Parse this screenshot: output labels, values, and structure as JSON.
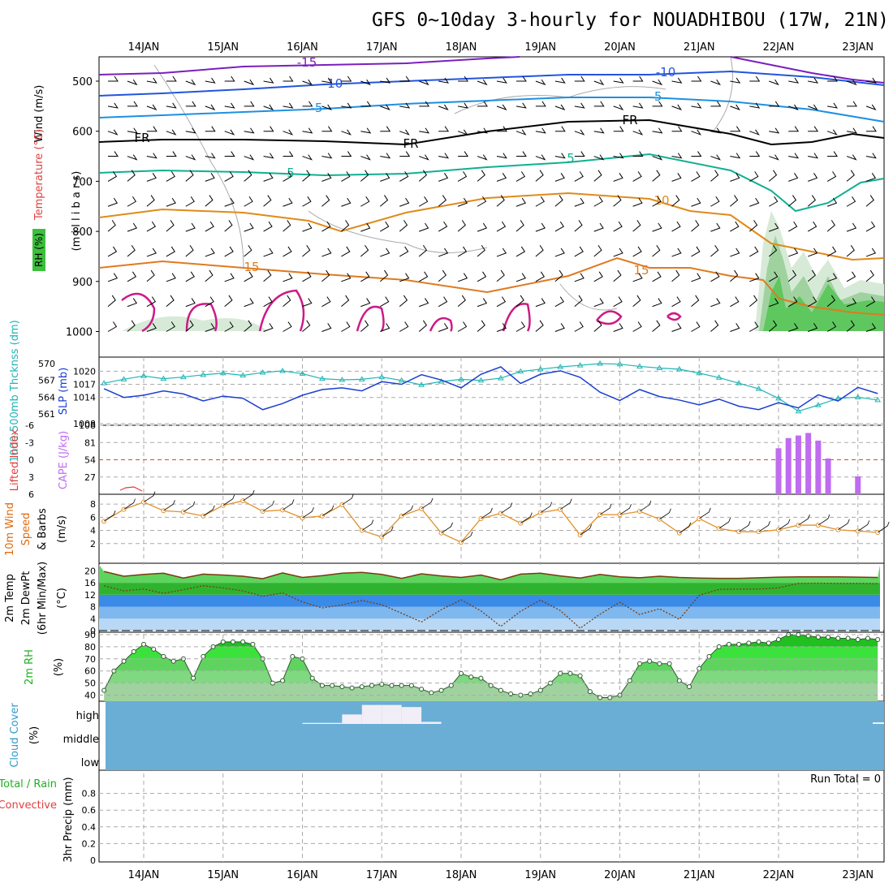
{
  "title": "GFS 0~10day 3-hourly for NOUADHIBOU (17W, 21N)",
  "dates": [
    "14JAN",
    "15JAN",
    "16JAN",
    "17JAN",
    "18JAN",
    "19JAN",
    "20JAN",
    "21JAN",
    "22JAN",
    "23JAN"
  ],
  "colors": {
    "purple": "#7a1fbf",
    "blue": "#2255dd",
    "skyblue": "#1e90e0",
    "green_teal": "#10b090",
    "orange": "#e08a1a",
    "dark_orange": "#e07a20",
    "magenta": "#cc1a88",
    "rh_green": "#5ec75e",
    "cloud_blue": "#6aaed6",
    "cape": "#bf6cf0",
    "li": "#e33b3b",
    "wind_speed": "#e0902a",
    "thickness": "#22b5b5",
    "slp": "#1b3fd0",
    "rh2m": "#4fd44f"
  },
  "panels": {
    "upper": {
      "ylabel_wind": "Wind (m/s)",
      "ylabel_temp": "Temperature (°C)",
      "ylabel_rh": "RH (%)",
      "ylabel_p": "(m i l l i b a r s)",
      "p_ticks": [
        "500",
        "600",
        "700",
        "800",
        "900",
        "1000"
      ],
      "contour_labels": [
        "-15",
        "-10",
        "-10",
        "-5",
        "-5",
        "FR",
        "FR",
        "FR",
        "5",
        "5",
        "10",
        "15",
        "15"
      ]
    },
    "thickness": {
      "ylabel_thick": "1000-500mb Thcknss (dm)",
      "ylabel_slp": "SLP (mb)",
      "thick_ticks": [
        "570",
        "567",
        "564",
        "561"
      ],
      "slp_ticks": [
        "1020",
        "1017",
        "1014",
        "1008"
      ]
    },
    "cape": {
      "ylabel_li": "Lifted Index",
      "ylabel_cape": "CAPE (J/kg)",
      "li_ticks": [
        "-6",
        "-3",
        "0",
        "3",
        "6"
      ],
      "cape_ticks": [
        "108",
        "81",
        "54",
        "27"
      ]
    },
    "wind10": {
      "ylabel_a": "10m Wind",
      "ylabel_b": "Speed",
      "ylabel_c": "& Barbs",
      "ylabel_unit": "(m/s)",
      "ticks": [
        "8",
        "6",
        "4",
        "2"
      ]
    },
    "temp2m": {
      "ylabel_a": "2m Temp",
      "ylabel_b": "2m DewPt",
      "ylabel_c": "(6hr Min/Max)",
      "ylabel_unit": "(°C)",
      "ticks": [
        "20",
        "16",
        "12",
        "8",
        "4",
        "0"
      ]
    },
    "rh2m": {
      "ylabel": "2m RH",
      "ylabel_unit": "(%)",
      "ticks": [
        "90",
        "80",
        "70",
        "60",
        "50",
        "40"
      ]
    },
    "cloud": {
      "ylabel": "Cloud Cover",
      "ylabel_unit": "(%)",
      "levels": [
        "high",
        "middle",
        "low"
      ]
    },
    "precip": {
      "ylabel_a": "Total / Rain",
      "ylabel_b": "Convective",
      "ylabel_c": "3hr Precip (mm)",
      "ticks": [
        "0.8",
        "0.6",
        "0.4",
        "0.2",
        "0"
      ],
      "run_total": "Run Total = 0"
    }
  },
  "chart_data": [
    {
      "type": "line",
      "title": "1000-500mb Thickness and SLP",
      "x": [
        "13.5JAN",
        "13.75JAN",
        "14.0JAN",
        "14.25JAN",
        "14.5JAN",
        "14.75JAN",
        "15.0JAN",
        "15.25JAN",
        "15.5JAN",
        "15.75JAN",
        "16.0JAN",
        "16.25JAN",
        "16.5JAN",
        "16.75JAN",
        "17.0JAN",
        "17.25JAN",
        "17.5JAN",
        "17.75JAN",
        "18.0JAN",
        "18.25JAN",
        "18.5JAN",
        "18.75JAN",
        "19.0JAN",
        "19.25JAN",
        "19.5JAN",
        "19.75JAN",
        "20.0JAN",
        "20.25JAN",
        "20.5JAN",
        "20.75JAN",
        "21.0JAN",
        "21.25JAN",
        "21.5JAN",
        "21.75JAN",
        "22.0JAN",
        "22.25JAN",
        "22.5JAN",
        "22.75JAN",
        "23.0JAN",
        "23.25JAN"
      ],
      "series": [
        {
          "name": "1000-500mb Thcknss (dm)",
          "values": [
            566.5,
            567.2,
            567.8,
            567.3,
            567.6,
            568.0,
            568.3,
            567.9,
            568.4,
            568.7,
            568.2,
            567.3,
            567.1,
            567.2,
            567.6,
            567.0,
            566.2,
            566.8,
            567.2,
            567.0,
            567.4,
            568.6,
            569.0,
            569.4,
            569.7,
            570.0,
            569.9,
            569.5,
            569.2,
            569.0,
            568.3,
            567.5,
            566.5,
            565.5,
            563.8,
            561.5,
            562.6,
            563.8,
            564.0,
            563.5
          ]
        },
        {
          "name": "SLP (mb)",
          "values": [
            1016,
            1014,
            1014.5,
            1015.5,
            1014.8,
            1013.2,
            1014.3,
            1013.8,
            1011.2,
            1012.6,
            1014.5,
            1015.8,
            1016.2,
            1015.5,
            1017.6,
            1017.0,
            1019.2,
            1018.0,
            1016.2,
            1019.3,
            1021.0,
            1017.2,
            1019.3,
            1020.1,
            1018.6,
            1015.2,
            1013.3,
            1015.8,
            1014.2,
            1013.4,
            1012.3,
            1013.6,
            1012.0,
            1011.2,
            1012.8,
            1011.6,
            1014.6,
            1013.2,
            1016.3,
            1014.9
          ]
        }
      ],
      "ylim_thickness": [
        560,
        571
      ],
      "ylim_slp": [
        1008,
        1023
      ]
    },
    {
      "type": "bar",
      "title": "CAPE (J/kg)",
      "categories": [
        "22.0JAN",
        "22.125JAN",
        "22.25JAN",
        "22.375JAN",
        "22.5JAN",
        "22.625JAN",
        "22.75JAN",
        "22.875JAN",
        "23.0JAN"
      ],
      "values": [
        72,
        88,
        92,
        96,
        84,
        56,
        0,
        0,
        28
      ],
      "ylim": [
        0,
        108
      ]
    },
    {
      "type": "line",
      "title": "10m Wind Speed (m/s)",
      "x": [
        "13.5",
        "13.75",
        "14.0",
        "14.25",
        "14.5",
        "14.75",
        "15.0",
        "15.25",
        "15.5",
        "15.75",
        "16.0",
        "16.25",
        "16.5",
        "16.75",
        "17.0",
        "17.25",
        "17.5",
        "17.75",
        "18.0",
        "18.25",
        "18.5",
        "18.75",
        "19.0",
        "19.25",
        "19.5",
        "19.75",
        "20.0",
        "20.25",
        "20.5",
        "20.75",
        "21.0",
        "21.25",
        "21.5",
        "21.75",
        "22.0",
        "22.25",
        "22.5",
        "22.75",
        "23.0",
        "23.25"
      ],
      "series": [
        {
          "name": "Speed",
          "values": [
            5.4,
            7.2,
            8.3,
            7.0,
            6.8,
            6.2,
            7.8,
            8.5,
            6.9,
            7.1,
            5.9,
            6.2,
            7.9,
            4.0,
            3.0,
            6.2,
            7.3,
            3.6,
            2.2,
            5.8,
            6.6,
            5.1,
            6.7,
            7.2,
            3.3,
            6.4,
            6.4,
            6.9,
            5.7,
            3.6,
            5.8,
            4.3,
            3.8,
            3.8,
            4.1,
            4.8,
            4.8,
            4.1,
            3.9,
            3.7
          ]
        }
      ],
      "ylim": [
        0,
        9
      ]
    },
    {
      "type": "line",
      "title": "2m Temp / 2m DewPt (°C)",
      "x": [
        "13.5",
        "13.75",
        "14.0",
        "14.25",
        "14.5",
        "14.75",
        "15.0",
        "15.25",
        "15.5",
        "15.75",
        "16.0",
        "16.25",
        "16.5",
        "16.75",
        "17.0",
        "17.25",
        "17.5",
        "17.75",
        "18.0",
        "18.25",
        "18.5",
        "18.75",
        "19.0",
        "19.25",
        "19.5",
        "19.75",
        "20.0",
        "20.25",
        "20.5",
        "20.75",
        "21.0",
        "21.25",
        "21.5",
        "21.75",
        "22.0",
        "22.25",
        "22.5",
        "22.75",
        "23.0",
        "23.25"
      ],
      "series": [
        {
          "name": "2m Temp",
          "values": [
            19.8,
            18.2,
            18.8,
            19.2,
            17.6,
            18.9,
            18.6,
            18.2,
            17.4,
            19.3,
            17.8,
            18.4,
            19.2,
            19.5,
            18.8,
            17.5,
            19.0,
            18.3,
            17.8,
            18.6,
            17.0,
            18.9,
            19.2,
            18.3,
            17.6,
            18.8,
            18.0,
            17.7,
            18.2,
            17.8,
            17.6,
            17.5,
            17.5,
            17.7,
            17.9,
            18.0,
            18.0,
            18.0,
            17.9,
            17.8
          ]
        },
        {
          "name": "2m DewPt",
          "values": [
            15.0,
            13.3,
            13.9,
            12.5,
            13.7,
            15.0,
            14.3,
            13.3,
            11.5,
            12.6,
            9.6,
            7.6,
            8.6,
            10.1,
            8.7,
            5.8,
            2.9,
            7.0,
            10.3,
            6.6,
            1.4,
            6.5,
            10.2,
            6.7,
            0.8,
            5.5,
            9.5,
            5.4,
            7.3,
            3.8,
            11.8,
            13.8,
            13.9,
            13.9,
            14.3,
            15.8,
            15.9,
            15.8,
            15.8,
            15.7
          ]
        }
      ],
      "ylim": [
        0,
        22
      ]
    },
    {
      "type": "area",
      "title": "2m RH (%)",
      "x": [
        "13.5",
        "13.625",
        "13.75",
        "13.875",
        "14.0",
        "14.125",
        "14.25",
        "14.375",
        "14.5",
        "14.625",
        "14.75",
        "14.875",
        "15.0",
        "15.125",
        "15.25",
        "15.375",
        "15.5",
        "15.625",
        "15.75",
        "15.875",
        "16.0",
        "16.125",
        "16.25",
        "16.375",
        "16.5",
        "16.625",
        "16.75",
        "16.875",
        "17.0",
        "17.125",
        "17.25",
        "17.375",
        "17.5",
        "17.625",
        "17.75",
        "17.875",
        "18.0",
        "18.125",
        "18.25",
        "18.375",
        "18.5",
        "18.625",
        "18.75",
        "18.875",
        "19.0",
        "19.125",
        "19.25",
        "19.375",
        "19.5",
        "19.625",
        "19.75",
        "19.875",
        "20.0",
        "20.125",
        "20.25",
        "20.375",
        "20.5",
        "20.625",
        "20.75",
        "20.875",
        "21.0",
        "21.125",
        "21.25",
        "21.375",
        "21.5",
        "21.625",
        "21.75",
        "21.875",
        "22.0",
        "22.125",
        "22.25",
        "22.375",
        "22.5",
        "22.625",
        "22.75",
        "22.875",
        "23.0",
        "23.125",
        "23.25"
      ],
      "series": [
        {
          "name": "2m RH",
          "values": [
            44,
            60,
            68,
            76,
            82,
            78,
            72,
            68,
            70,
            54,
            72,
            80,
            84,
            84,
            84,
            82,
            70,
            50,
            52,
            72,
            70,
            54,
            48,
            48,
            47,
            46,
            47,
            48,
            49,
            48,
            48,
            48,
            45,
            42,
            44,
            48,
            58,
            55,
            54,
            48,
            44,
            41,
            40,
            41,
            44,
            50,
            58,
            58,
            56,
            43,
            38,
            38,
            40,
            52,
            66,
            68,
            66,
            66,
            52,
            47,
            62,
            72,
            80,
            82,
            82,
            83,
            84,
            83,
            86,
            90,
            90,
            89,
            88,
            88,
            87,
            87,
            86,
            87,
            86
          ]
        }
      ],
      "ylim": [
        35,
        92
      ]
    },
    {
      "type": "bar",
      "title": "Cloud Cover (%) high",
      "categories": [
        "16.0",
        "16.25",
        "16.5",
        "16.75",
        "17.0",
        "17.25",
        "17.5"
      ],
      "values": [
        5,
        5,
        45,
        90,
        90,
        80,
        10
      ],
      "ylim": [
        0,
        100
      ]
    },
    {
      "type": "bar",
      "title": "3hr Precip (mm)",
      "categories": [],
      "values": [],
      "ylim": [
        0,
        1
      ]
    }
  ]
}
